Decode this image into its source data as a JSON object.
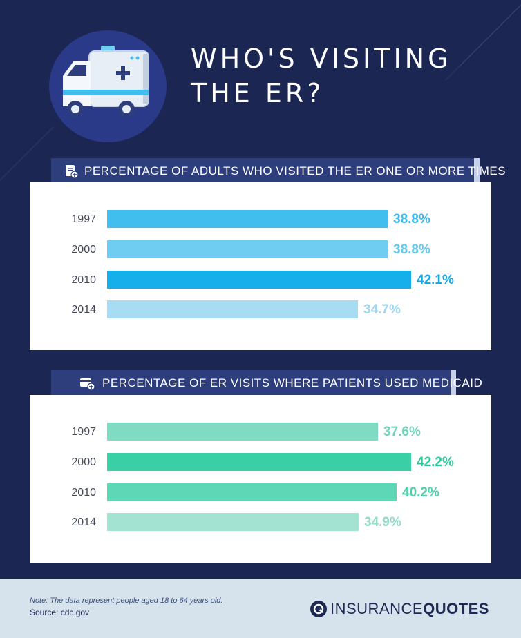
{
  "header": {
    "title_line1": "WHO'S VISITING",
    "title_line2": "THE ER?"
  },
  "colors": {
    "background": "#1b2652",
    "panel": "#ffffff",
    "section_header_bg": "#2e3d7c",
    "footer_bg": "#d6e2ec"
  },
  "chart_data": [
    {
      "type": "bar",
      "orientation": "horizontal",
      "title": "PERCENTAGE OF ADULTS WHO VISITED THE ER ONE OR MORE TIMES",
      "icon": "clipboard-plus-icon",
      "categories": [
        "1997",
        "2000",
        "2010",
        "2014"
      ],
      "values": [
        38.8,
        38.8,
        42.1,
        34.7
      ],
      "labels": [
        "38.8%",
        "38.8%",
        "42.1%",
        "34.7%"
      ],
      "colors": [
        "#41bdee",
        "#6fcdf1",
        "#17aeec",
        "#a8dcf2"
      ],
      "label_colors": [
        "#3fb9ec",
        "#66c8ef",
        "#16a9e8",
        "#9fd6ef"
      ],
      "xlim": [
        0,
        42.1
      ]
    },
    {
      "type": "bar",
      "orientation": "horizontal",
      "title": "PERCENTAGE OF ER VISITS WHERE PATIENTS USED MEDICAID",
      "icon": "card-plus-icon",
      "categories": [
        "1997",
        "2000",
        "2010",
        "2014"
      ],
      "values": [
        37.6,
        42.2,
        40.2,
        34.9
      ],
      "labels": [
        "37.6%",
        "42.2%",
        "40.2%",
        "34.9%"
      ],
      "colors": [
        "#7fdcc3",
        "#3bcfa5",
        "#5ed7b6",
        "#a3e3d2"
      ],
      "label_colors": [
        "#6fd3b8",
        "#32c79d",
        "#4fd0ad",
        "#93dcc8"
      ],
      "xlim": [
        0,
        42.2
      ]
    }
  ],
  "footer": {
    "note": "Note: The data represent people aged 18 to 64 years old.",
    "source": "Source: cdc.gov",
    "brand_part1": "INSURANCE",
    "brand_part2": "QUOTES",
    "brand_icon": "insurancequotes-logo-icon"
  }
}
